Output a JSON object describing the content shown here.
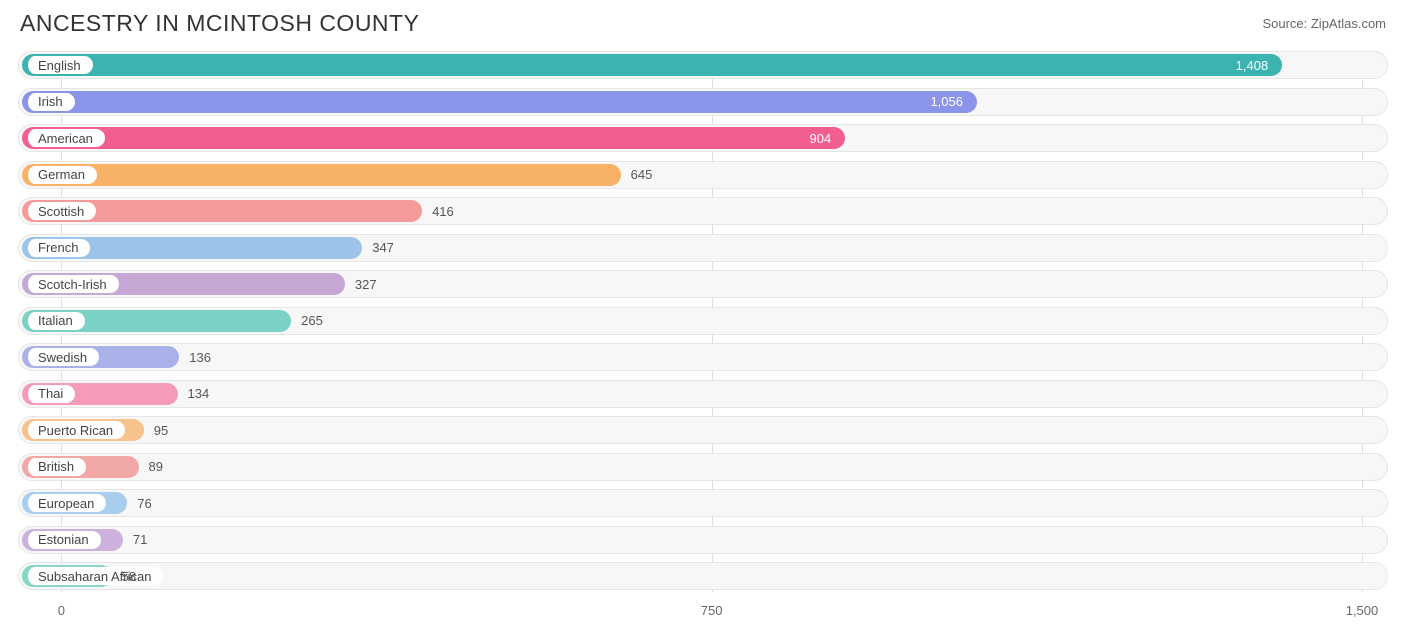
{
  "title": "ANCESTRY IN MCINTOSH COUNTY",
  "source": "Source: ZipAtlas.com",
  "chart": {
    "type": "bar",
    "orientation": "horizontal",
    "xmin": -50,
    "xmax": 1530,
    "ticks": [
      {
        "value": 0,
        "label": "0"
      },
      {
        "value": 750,
        "label": "750"
      },
      {
        "value": 1500,
        "label": "1,500"
      }
    ],
    "track_bg": "#f7f7f7",
    "track_border": "#e5e5e5",
    "grid_color": "#dddddd",
    "label_fontsize": 13,
    "title_fontsize": 23,
    "value_inside_threshold": 900,
    "bars": [
      {
        "label": "English",
        "value": 1408,
        "display": "1,408",
        "color": "#3bb3b0"
      },
      {
        "label": "Irish",
        "value": 1056,
        "display": "1,056",
        "color": "#8a94e8"
      },
      {
        "label": "American",
        "value": 904,
        "display": "904",
        "color": "#f25f8e"
      },
      {
        "label": "German",
        "value": 645,
        "display": "645",
        "color": "#f7b267"
      },
      {
        "label": "Scottish",
        "value": 416,
        "display": "416",
        "color": "#f49a9a"
      },
      {
        "label": "French",
        "value": 347,
        "display": "347",
        "color": "#9cc3e8"
      },
      {
        "label": "Scotch-Irish",
        "value": 327,
        "display": "327",
        "color": "#c6a8d6"
      },
      {
        "label": "Italian",
        "value": 265,
        "display": "265",
        "color": "#7ad1c4"
      },
      {
        "label": "Swedish",
        "value": 136,
        "display": "136",
        "color": "#a9b1e8"
      },
      {
        "label": "Thai",
        "value": 134,
        "display": "134",
        "color": "#f59bb8"
      },
      {
        "label": "Puerto Rican",
        "value": 95,
        "display": "95",
        "color": "#f7c28b"
      },
      {
        "label": "British",
        "value": 89,
        "display": "89",
        "color": "#f2a7a7"
      },
      {
        "label": "European",
        "value": 76,
        "display": "76",
        "color": "#a8cdee"
      },
      {
        "label": "Estonian",
        "value": 71,
        "display": "71",
        "color": "#ccb1dc"
      },
      {
        "label": "Subsaharan African",
        "value": 58,
        "display": "58",
        "color": "#88d6c7"
      }
    ]
  }
}
